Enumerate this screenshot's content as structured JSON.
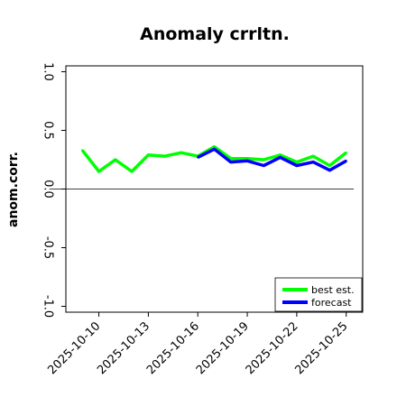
{
  "chart_data": {
    "type": "line",
    "title": "Anomaly crrltn.",
    "xlabel": "",
    "ylabel": "anom.corr.",
    "ylim": [
      -1.05,
      1.05
    ],
    "yticks": [
      -1.0,
      -0.5,
      0.0,
      0.5,
      1.0
    ],
    "ytick_labels": [
      "-1.0",
      "-0.5",
      "0.0",
      "0.5",
      "1.0"
    ],
    "xlim": [
      "2025-10-08",
      "2025-10-26"
    ],
    "xticks": [
      "2025-10-10",
      "2025-10-13",
      "2025-10-16",
      "2025-10-19",
      "2025-10-22",
      "2025-10-25"
    ],
    "xtick_labels": [
      "2025-10-10",
      "2025-10-13",
      "2025-10-16",
      "2025-10-19",
      "2025-10-22",
      "2025-10-25"
    ],
    "highlighted_xtick": "2025-10-16",
    "highlight_color": "#228b22",
    "reference_line": 0.0,
    "grid": false,
    "legend_position": "bottom-right",
    "series": [
      {
        "name": "best est.",
        "color": "#00ff00",
        "x": [
          "2025-10-09",
          "2025-10-10",
          "2025-10-11",
          "2025-10-12",
          "2025-10-13",
          "2025-10-14",
          "2025-10-15",
          "2025-10-16",
          "2025-10-17",
          "2025-10-18",
          "2025-10-19",
          "2025-10-20",
          "2025-10-21",
          "2025-10-22",
          "2025-10-23",
          "2025-10-24",
          "2025-10-25"
        ],
        "values": [
          0.33,
          0.15,
          0.25,
          0.15,
          0.29,
          0.28,
          0.31,
          0.28,
          0.36,
          0.26,
          0.26,
          0.25,
          0.29,
          0.23,
          0.28,
          0.2,
          0.31
        ]
      },
      {
        "name": "forecast",
        "color": "#0000ff",
        "x": [
          "2025-10-16",
          "2025-10-17",
          "2025-10-18",
          "2025-10-19",
          "2025-10-20",
          "2025-10-21",
          "2025-10-22",
          "2025-10-23",
          "2025-10-24",
          "2025-10-25"
        ],
        "values": [
          0.27,
          0.34,
          0.23,
          0.24,
          0.2,
          0.27,
          0.2,
          0.23,
          0.16,
          0.24
        ]
      }
    ]
  }
}
